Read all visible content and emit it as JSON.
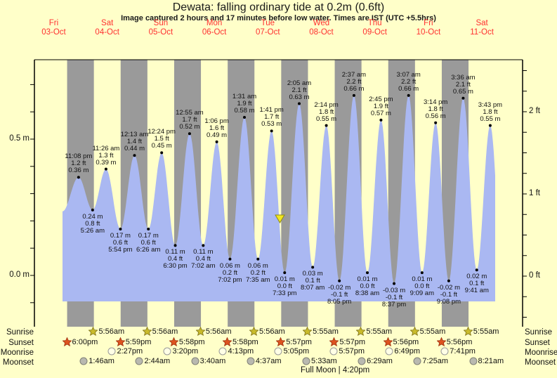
{
  "title": "Dewata: falling  ordinary tide at 0.2m (0.6ft)",
  "subtitle": "Image captured 2 hours and 17 minutes before low water. Times are IST (UTC +5.5hrs)",
  "days": [
    {
      "name": "Fri",
      "date": "03-Oct"
    },
    {
      "name": "Sat",
      "date": "04-Oct"
    },
    {
      "name": "Sun",
      "date": "05-Oct"
    },
    {
      "name": "Mon",
      "date": "06-Oct"
    },
    {
      "name": "Tue",
      "date": "07-Oct"
    },
    {
      "name": "Wed",
      "date": "08-Oct"
    },
    {
      "name": "Thu",
      "date": "09-Oct"
    },
    {
      "name": "Fri",
      "date": "10-Oct"
    },
    {
      "name": "Sat",
      "date": "11-Oct"
    }
  ],
  "axes": {
    "left_labels": [
      {
        "text": "0.5 m",
        "value": 0.5
      },
      {
        "text": "0.0 m",
        "value": 0.0
      }
    ],
    "right_labels": [
      {
        "text": "2 ft",
        "value": 2
      },
      {
        "text": "1 ft",
        "value": 1
      },
      {
        "text": "0 ft",
        "value": 0
      }
    ]
  },
  "chart_data": {
    "type": "area",
    "title": "Dewata: falling  ordinary tide at 0.2m (0.6ft)",
    "ylabel_left": "m",
    "ylabel_right": "ft",
    "ylim_m": [
      -0.19,
      0.79
    ],
    "grid": false,
    "legend": "none",
    "events": [
      {
        "day": 0,
        "time": "11:08 pm",
        "type": "high",
        "m": 0.36,
        "ft": 1.2
      },
      {
        "day": 1,
        "time": "5:26 am",
        "type": "low",
        "m": 0.24,
        "ft": 0.8
      },
      {
        "day": 1,
        "time": "11:26 am",
        "type": "high",
        "m": 0.39,
        "ft": 1.3
      },
      {
        "day": 1,
        "time": "5:54 pm",
        "type": "low",
        "m": 0.17,
        "ft": 0.6
      },
      {
        "day": 2,
        "time": "12:13 am",
        "type": "high",
        "m": 0.44,
        "ft": 1.4
      },
      {
        "day": 2,
        "time": "6:26 am",
        "type": "low",
        "m": 0.17,
        "ft": 0.6
      },
      {
        "day": 2,
        "time": "12:24 pm",
        "type": "high",
        "m": 0.45,
        "ft": 1.5
      },
      {
        "day": 2,
        "time": "6:30 pm",
        "type": "low",
        "m": 0.11,
        "ft": 0.4
      },
      {
        "day": 3,
        "time": "12:55 am",
        "type": "high",
        "m": 0.52,
        "ft": 1.7
      },
      {
        "day": 3,
        "time": "7:02 am",
        "type": "low",
        "m": 0.11,
        "ft": 0.4
      },
      {
        "day": 3,
        "time": "1:06 pm",
        "type": "high",
        "m": 0.49,
        "ft": 1.6
      },
      {
        "day": 3,
        "time": "7:02 pm",
        "type": "low",
        "m": 0.06,
        "ft": 0.2
      },
      {
        "day": 4,
        "time": "1:31 am",
        "type": "high",
        "m": 0.58,
        "ft": 1.9
      },
      {
        "day": 4,
        "time": "7:35 am",
        "type": "low",
        "m": 0.06,
        "ft": 0.2
      },
      {
        "day": 4,
        "time": "1:41 pm",
        "type": "high",
        "m": 0.53,
        "ft": 1.7
      },
      {
        "day": 4,
        "time": "7:33 pm",
        "type": "low",
        "m": 0.01,
        "ft": 0.0
      },
      {
        "day": 5,
        "time": "2:05 am",
        "type": "high",
        "m": 0.63,
        "ft": 2.1
      },
      {
        "day": 5,
        "time": "8:07 am",
        "type": "low",
        "m": 0.03,
        "ft": 0.1
      },
      {
        "day": 5,
        "time": "2:14 pm",
        "type": "high",
        "m": 0.55,
        "ft": 1.8
      },
      {
        "day": 5,
        "time": "8:05 pm",
        "type": "low",
        "m": -0.02,
        "ft": -0.1
      },
      {
        "day": 6,
        "time": "2:37 am",
        "type": "high",
        "m": 0.66,
        "ft": 2.2
      },
      {
        "day": 6,
        "time": "8:38 am",
        "type": "low",
        "m": 0.01,
        "ft": 0.0
      },
      {
        "day": 6,
        "time": "2:45 pm",
        "type": "high",
        "m": 0.57,
        "ft": 1.9
      },
      {
        "day": 6,
        "time": "8:37 pm",
        "type": "low",
        "m": -0.03,
        "ft": -0.1
      },
      {
        "day": 7,
        "time": "3:07 am",
        "type": "high",
        "m": 0.66,
        "ft": 2.2
      },
      {
        "day": 7,
        "time": "9:09 am",
        "type": "low",
        "m": 0.01,
        "ft": 0.0
      },
      {
        "day": 7,
        "time": "3:14 pm",
        "type": "high",
        "m": 0.56,
        "ft": 1.8
      },
      {
        "day": 7,
        "time": "9:08 pm",
        "type": "low",
        "m": -0.02,
        "ft": -0.1
      },
      {
        "day": 8,
        "time": "3:36 am",
        "type": "high",
        "m": 0.65,
        "ft": 2.1
      },
      {
        "day": 8,
        "time": "9:41 am",
        "type": "low",
        "m": 0.02,
        "ft": 0.1
      },
      {
        "day": 8,
        "time": "3:43 pm",
        "type": "high",
        "m": 0.55,
        "ft": 1.8
      }
    ]
  },
  "astro": {
    "rows": [
      {
        "label": "Sunrise",
        "icon": "sunrise-star",
        "events": [
          {
            "day": 1,
            "time": "5:56am"
          },
          {
            "day": 2,
            "time": "5:56am"
          },
          {
            "day": 3,
            "time": "5:56am"
          },
          {
            "day": 4,
            "time": "5:56am"
          },
          {
            "day": 5,
            "time": "5:55am"
          },
          {
            "day": 6,
            "time": "5:55am"
          },
          {
            "day": 7,
            "time": "5:55am"
          },
          {
            "day": 8,
            "time": "5:55am"
          }
        ]
      },
      {
        "label": "Sunset",
        "icon": "sunset-star",
        "events": [
          {
            "day": 0,
            "time": "6:00pm"
          },
          {
            "day": 1,
            "time": "5:59pm"
          },
          {
            "day": 2,
            "time": "5:58pm"
          },
          {
            "day": 3,
            "time": "5:58pm"
          },
          {
            "day": 4,
            "time": "5:57pm"
          },
          {
            "day": 5,
            "time": "5:57pm"
          },
          {
            "day": 6,
            "time": "5:56pm"
          },
          {
            "day": 7,
            "time": "5:56pm"
          }
        ]
      },
      {
        "label": "Moonrise",
        "icon": "moonrise-circle",
        "events": [
          {
            "day": 1,
            "time": "2:27pm"
          },
          {
            "day": 2,
            "time": "3:20pm"
          },
          {
            "day": 3,
            "time": "4:13pm"
          },
          {
            "day": 4,
            "time": "5:05pm"
          },
          {
            "day": 5,
            "time": "5:57pm"
          },
          {
            "day": 6,
            "time": "6:49pm"
          },
          {
            "day": 7,
            "time": "7:41pm"
          }
        ]
      },
      {
        "label": "Moonset",
        "icon": "moonset-circle",
        "events": [
          {
            "day": 1,
            "time": "1:46am"
          },
          {
            "day": 2,
            "time": "2:44am"
          },
          {
            "day": 3,
            "time": "3:40am"
          },
          {
            "day": 4,
            "time": "4:37am"
          },
          {
            "day": 5,
            "time": "5:33am"
          },
          {
            "day": 6,
            "time": "6:29am"
          },
          {
            "day": 7,
            "time": "7:25am"
          },
          {
            "day": 8,
            "time": "8:21am"
          }
        ]
      }
    ]
  },
  "full_moon": "Full Moon | 4:20pm",
  "colors": {
    "background": "#ffffc9",
    "night_band": "#9a9a9a",
    "tide_fill": "#aab8f2",
    "day_label": "#ff3030",
    "sunrise_star": "#c9bb2b",
    "sunset_star": "#dd5320",
    "moonrise_circle": "#ffffe6",
    "moonset_circle": "#b9b9b0",
    "now_marker": "#f2e71f"
  }
}
